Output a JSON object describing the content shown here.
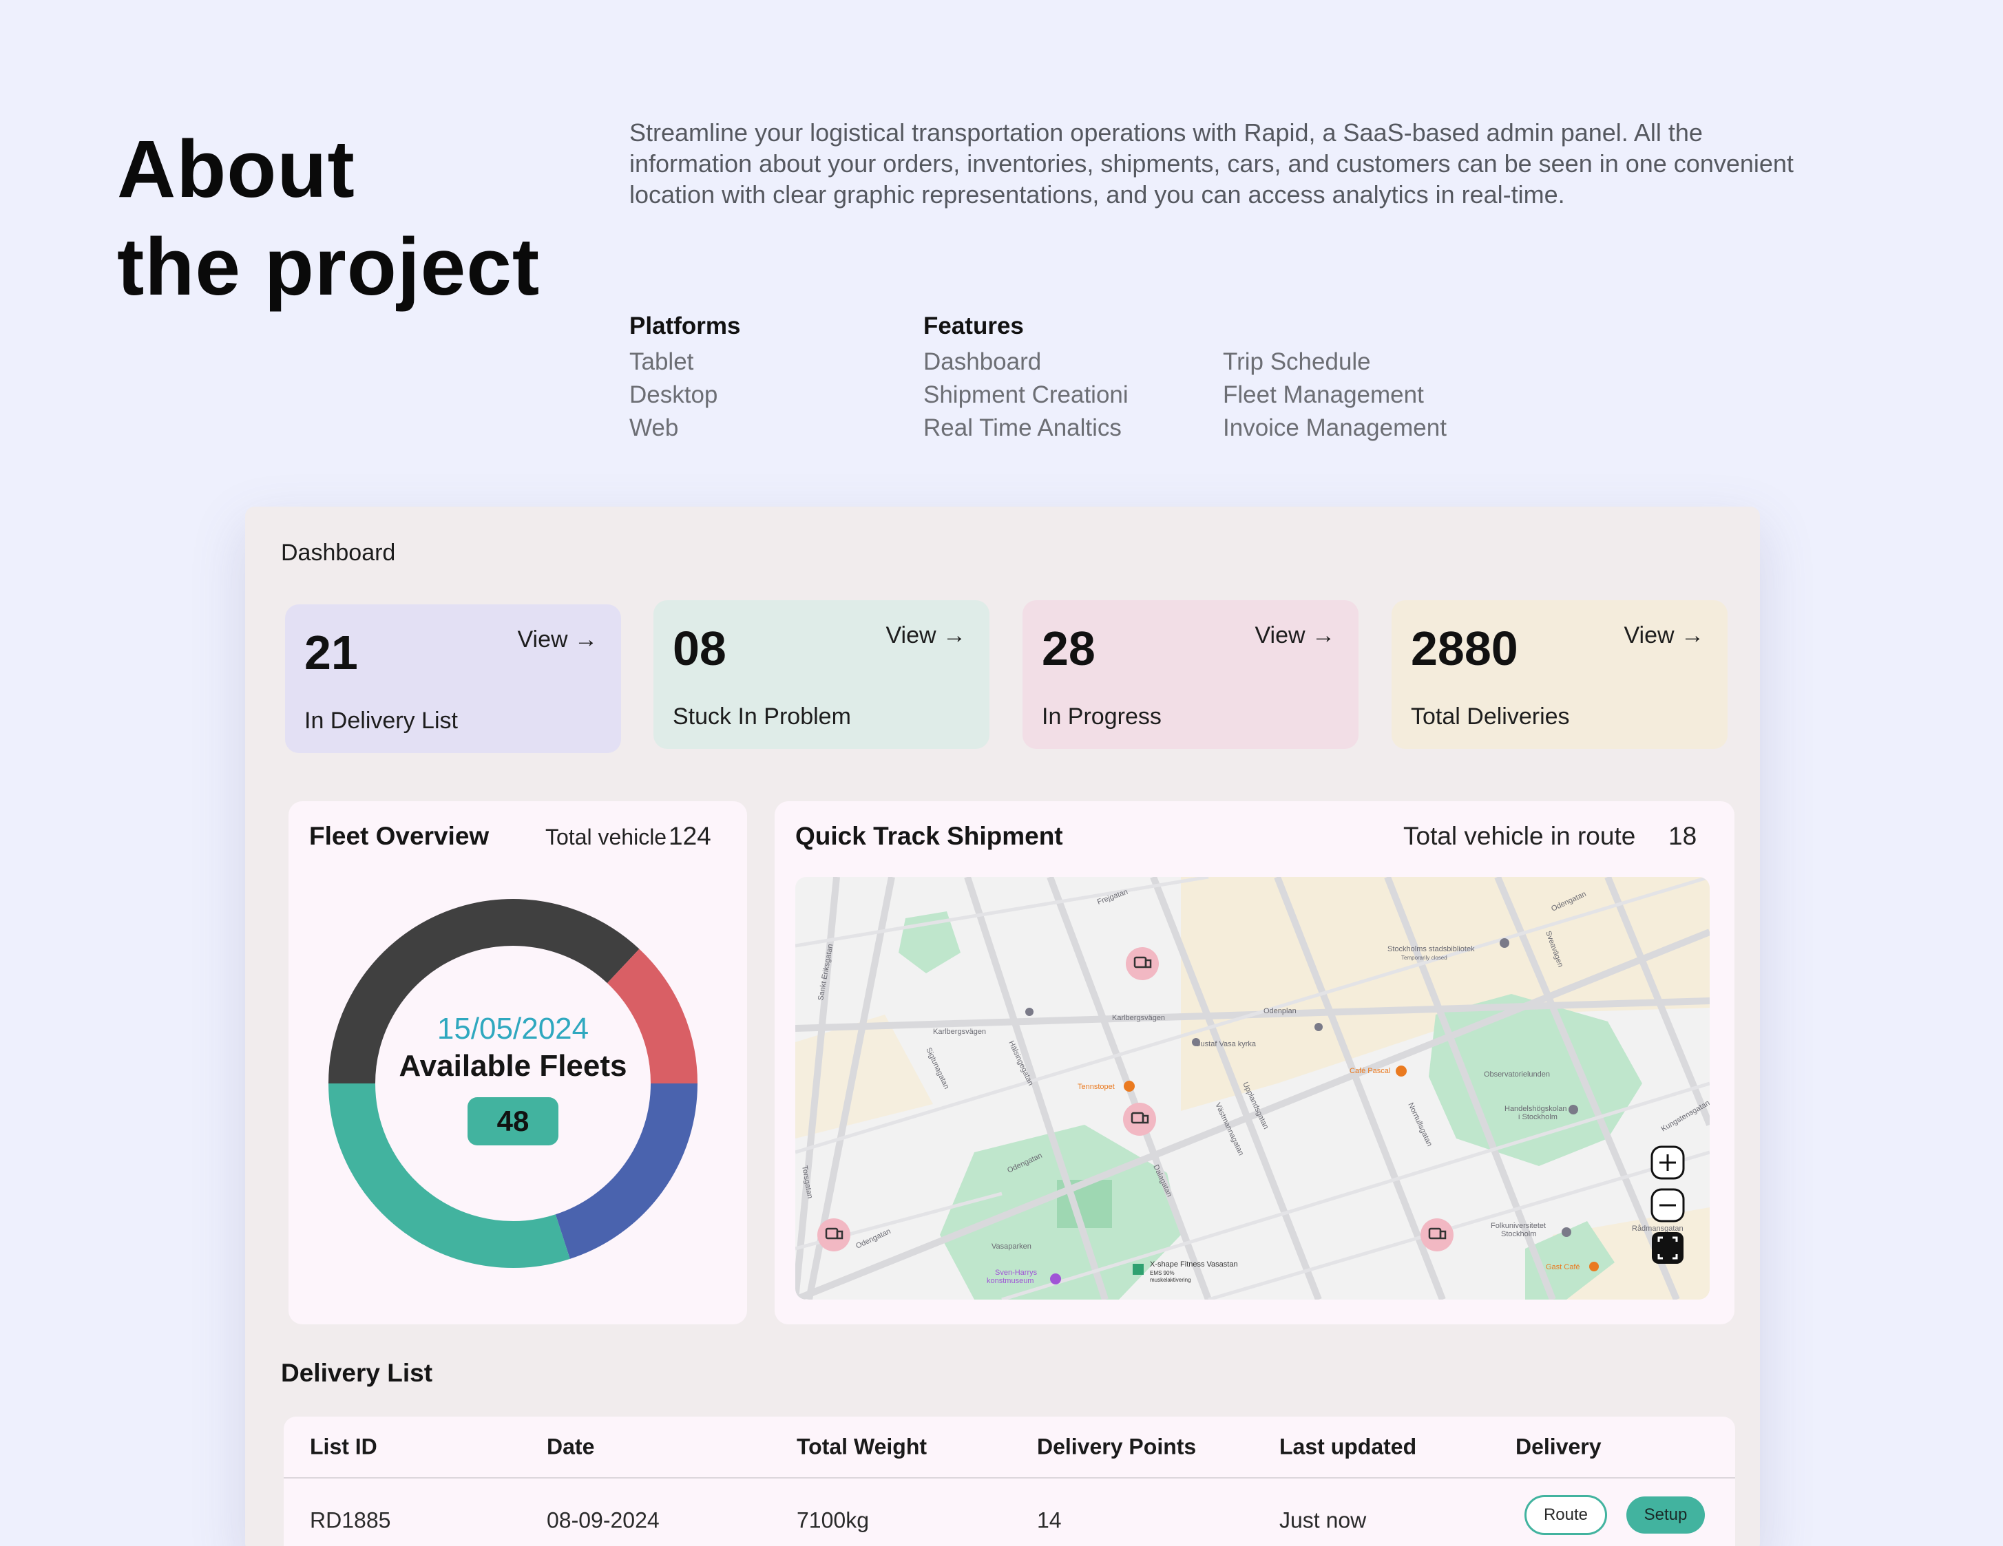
{
  "hero": {
    "title_line1": "About",
    "title_line2": "the project",
    "description": "Streamline your logistical transportation operations with Rapid, a SaaS-based admin panel. All the information about your orders, inventories, shipments, cars, and customers can be seen in one convenient location with clear graphic representations, and you can access analytics in real-time."
  },
  "platforms": {
    "heading": "Platforms",
    "items": [
      "Tablet",
      "Desktop",
      "Web"
    ]
  },
  "features": {
    "heading": "Features",
    "items": [
      "Dashboard",
      "Shipment Creationi",
      "Real Time Analtics"
    ],
    "items2": [
      "Trip Schedule",
      "Fleet Management",
      "Invoice Management"
    ]
  },
  "dashboard": {
    "title": "Dashboard",
    "cards": [
      {
        "value": "21",
        "label": "In Delivery List",
        "view": "View →"
      },
      {
        "value": "08",
        "label": "Stuck In Problem",
        "view": "View →"
      },
      {
        "value": "28",
        "label": "In Progress",
        "view": "View →"
      },
      {
        "value": "2880",
        "label": "Total Deliveries",
        "view": "View →"
      }
    ],
    "colors": {
      "card1": "#e3e0f4",
      "card2": "#dfece8",
      "card3": "#f2dee6",
      "card4": "#f4ecdc",
      "accent": "#42b39f"
    }
  },
  "fleet": {
    "title": "Fleet Overview",
    "total_label": "Total vehicle",
    "total_value": "124",
    "date": "15/05/2024",
    "center_label": "Available Fleets",
    "available": "48",
    "segments": [
      {
        "color": "#404040",
        "fraction": 0.37
      },
      {
        "color": "#d95f65",
        "fraction": 0.13
      },
      {
        "color": "#4a63ae",
        "fraction": 0.2
      },
      {
        "color": "#42b39f",
        "fraction": 0.3
      }
    ]
  },
  "track": {
    "title": "Quick Track Shipment",
    "route_label": "Total vehicle in route",
    "route_value": "18",
    "map_labels": {
      "odenplan": "Odenplan",
      "gustaf": "Gustaf Vasa kyrka",
      "library": "Stockholms stadsbibliotek",
      "library_sub": "Temporarily closed",
      "observatory": "Observatorielunden",
      "cafe_pascal": "Café Pascal",
      "tennstopet": "Tennstopet",
      "handels": "Handelshögskolan",
      "handels_sub": "i Stockholm",
      "vasaparken": "Vasaparken",
      "sven_harrys": "Sven-Harrys",
      "sven_harrys_sub": "konstmuseum",
      "xshape": "X-shape Fitness Vasastan",
      "xshape_sub1": "EMS 90%",
      "xshape_sub2": "muskelaktivering",
      "folk": "Folkuniversitetet",
      "folk_sub": "Stockholm",
      "gast": "Gast Café",
      "radmansgatan": "Rådmansgatan",
      "karlbergsvagen": "Karlbergsvägen",
      "odengatan": "Odengatan",
      "frejgatan": "Frejgatan",
      "upplandsgatan": "Upplandsgatan",
      "vastmannagatan": "Västmannagatan",
      "dalagatan": "Dalagatan",
      "sigtunagatan": "Sigtunagatan",
      "halsingegatan": "Hälsingegatan",
      "torsgatan": "Torsgatan",
      "sankt_eriksgatan": "Sankt Eriksgatan",
      "norrtullsgatan": "Norrtullsgatan",
      "sveavagen": "Sveavägen",
      "kungstensgatan": "Kungstensgatan"
    }
  },
  "delivery": {
    "title": "Delivery List",
    "columns": [
      "List ID",
      "Date",
      "Total Weight",
      "Delivery Points",
      "Last updated",
      "Delivery"
    ],
    "rows": [
      {
        "id": "RD1885",
        "date": "08-09-2024",
        "weight": "7100kg",
        "points": "14",
        "updated": "Just now",
        "route": "Route",
        "setup": "Setup"
      }
    ]
  }
}
